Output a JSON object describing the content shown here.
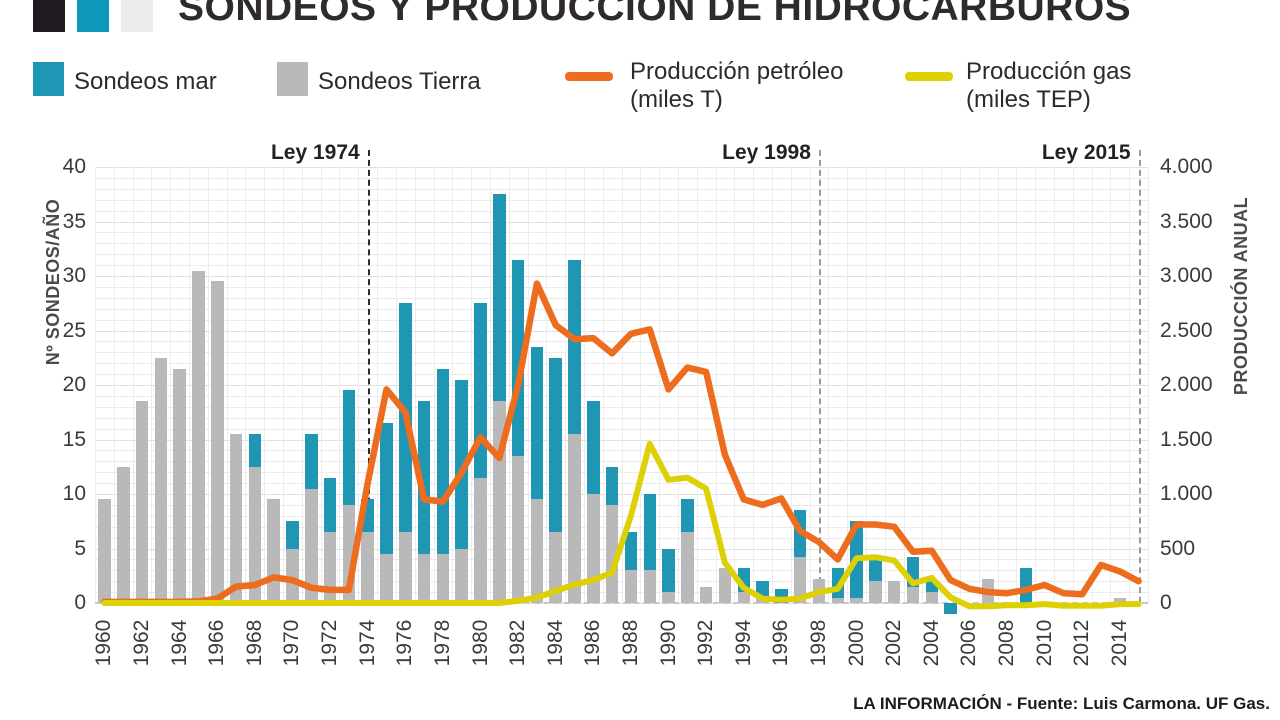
{
  "title": "SONDEOS Y PRODUCCIÓN DE HIDROCARBUROS",
  "logo": {
    "square_colors": [
      "#211a20",
      "#0d98b9",
      "#ececec"
    ]
  },
  "legend": {
    "mar_label": "Sondeos mar",
    "tierra_label": "Sondeos Tierra",
    "petroleo_label_line1": "Producción petróleo",
    "petroleo_label_line2": "(miles T)",
    "gas_label_line1": "Producción gas",
    "gas_label_line2": "(miles TEP)"
  },
  "footer": "LA INFORMACIÓN - Fuente:  Luis Carmona. UF Gas.",
  "chart_data": {
    "type": "bar",
    "subtype": "stacked-bars-with-lines",
    "x": [
      1960,
      1961,
      1962,
      1963,
      1964,
      1965,
      1966,
      1967,
      1968,
      1969,
      1970,
      1971,
      1972,
      1973,
      1974,
      1975,
      1976,
      1977,
      1978,
      1979,
      1980,
      1981,
      1982,
      1983,
      1984,
      1985,
      1986,
      1987,
      1988,
      1989,
      1990,
      1991,
      1992,
      1993,
      1994,
      1995,
      1996,
      1997,
      1998,
      1999,
      2000,
      2001,
      2002,
      2003,
      2004,
      2005,
      2006,
      2007,
      2008,
      2009,
      2010,
      2011,
      2012,
      2013,
      2014,
      2015
    ],
    "x_tick_labels": [
      "1960",
      "1962",
      "1964",
      "1966",
      "1968",
      "1970",
      "1972",
      "1974",
      "1976",
      "1978",
      "1980",
      "1982",
      "1984",
      "1986",
      "1988",
      "1990",
      "1992",
      "1994",
      "1996",
      "1998",
      "2000",
      "2002",
      "2004",
      "2006",
      "2008",
      "2010",
      "2012",
      "2014"
    ],
    "left_axis": {
      "label": "Nº SONDEOS/AÑO",
      "ticks": [
        "40",
        "35",
        "30",
        "25",
        "20",
        "15",
        "10",
        "5",
        "0"
      ],
      "min": 0,
      "max": 40
    },
    "right_axis": {
      "label": "PRODUCCIÓN ANUAL",
      "ticks": [
        "4.000",
        "3.500",
        "3.000",
        "2.500",
        "2.000",
        "1.500",
        "1.000",
        "500",
        "0"
      ],
      "min": 0,
      "max": 4000
    },
    "grid": "fine 1-unit grid, on",
    "legend_position": "top",
    "series": [
      {
        "name": "Sondeos Tierra",
        "type": "bar",
        "stack": "sondeos",
        "axis": "left",
        "color": "#b9b9b9",
        "values": [
          9.5,
          12.5,
          18.5,
          22.5,
          21.5,
          30.5,
          29.5,
          15.5,
          12.5,
          9.5,
          5,
          10.5,
          6.5,
          9,
          6.5,
          4.5,
          6.5,
          4.5,
          4.5,
          5,
          11.5,
          18.5,
          13.5,
          9.5,
          6.5,
          15.5,
          10,
          9,
          3,
          3,
          1,
          6.5,
          1.5,
          3.25,
          1,
          0.5,
          0,
          4.25,
          2.25,
          0.5,
          0.5,
          2,
          2,
          1.5,
          1,
          0,
          0,
          2.25,
          0,
          0,
          0,
          0,
          0,
          0,
          0.5,
          0
        ]
      },
      {
        "name": "Sondeos mar",
        "type": "bar",
        "stack": "sondeos",
        "axis": "left",
        "color": "#1e96b4",
        "values": [
          0,
          0,
          0,
          0,
          0,
          0,
          0,
          0,
          3,
          0,
          2.5,
          5,
          5,
          10.5,
          3,
          12,
          21,
          14,
          17,
          15.5,
          16,
          19,
          18,
          14,
          16,
          16,
          8.5,
          3.5,
          3.5,
          7,
          4,
          3,
          0,
          0,
          2.25,
          1.5,
          1.25,
          4.25,
          0,
          2.75,
          7,
          2,
          0,
          2.75,
          1,
          -1,
          0,
          0,
          0,
          3.25,
          0,
          0,
          0,
          0,
          0,
          0
        ]
      },
      {
        "name": "Producción petróleo (miles T)",
        "type": "line",
        "axis": "right",
        "color": "#ed6c1e",
        "values": [
          10,
          10,
          10,
          10,
          10,
          15,
          40,
          150,
          165,
          235,
          210,
          140,
          120,
          120,
          1100,
          1960,
          1750,
          950,
          930,
          1200,
          1520,
          1330,
          2000,
          2930,
          2550,
          2420,
          2430,
          2290,
          2470,
          2510,
          1960,
          2160,
          2120,
          1360,
          950,
          900,
          960,
          660,
          560,
          400,
          720,
          720,
          700,
          470,
          480,
          210,
          130,
          100,
          90,
          120,
          165,
          90,
          80,
          350,
          290,
          200
        ]
      },
      {
        "name": "Producción gas (miles TEP)",
        "type": "line",
        "axis": "right",
        "color": "#ddd005",
        "values": [
          0,
          0,
          0,
          0,
          0,
          0,
          0,
          0,
          0,
          0,
          0,
          0,
          0,
          0,
          0,
          0,
          0,
          0,
          0,
          0,
          0,
          0,
          20,
          50,
          110,
          170,
          210,
          280,
          800,
          1460,
          1130,
          1150,
          1050,
          370,
          140,
          40,
          30,
          40,
          100,
          130,
          410,
          420,
          390,
          180,
          230,
          50,
          -30,
          -30,
          -20,
          -20,
          -10,
          -25,
          -25,
          -25,
          -10,
          -10
        ]
      }
    ],
    "annotations": [
      {
        "label": "Ley 1974",
        "year": 1974,
        "line_color": "#2b2b2b"
      },
      {
        "label": "Ley 1998",
        "year": 1998,
        "line_color": "#9a9a9a"
      },
      {
        "label": "Ley 2015",
        "year": 2015,
        "line_color": "#9a9a9a"
      }
    ]
  }
}
